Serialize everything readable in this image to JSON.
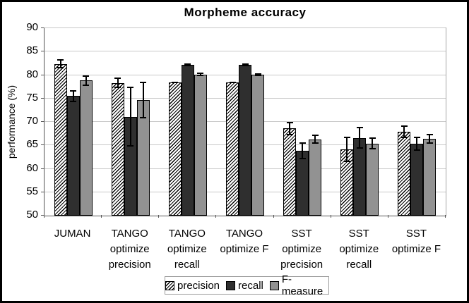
{
  "chart_data": {
    "type": "bar",
    "title": "Morpheme accuracy",
    "xlabel": "",
    "ylabel": "performance (%)",
    "ylim": [
      50,
      90
    ],
    "yticks": [
      90,
      85,
      80,
      75,
      70,
      65,
      60,
      55,
      50
    ],
    "grid": true,
    "legend_position": "bottom",
    "categories": [
      "JUMAN",
      "TANGO optimize precision",
      "TANGO optimize recall",
      "TANGO optimize F",
      "SST optimize precision",
      "SST optimize recall",
      "SST optimize F"
    ],
    "category_label_lines": [
      [
        "JUMAN"
      ],
      [
        "TANGO",
        "optimize",
        "precision"
      ],
      [
        "TANGO",
        "optimize",
        "recall"
      ],
      [
        "TANGO",
        "optimize F"
      ],
      [
        "SST",
        "optimize",
        "precision"
      ],
      [
        "SST",
        "optimize",
        "recall"
      ],
      [
        "SST",
        "optimize F"
      ]
    ],
    "series": [
      {
        "name": "precision",
        "fill": "hatch",
        "values": [
          82.4,
          78.3,
          78.4,
          78.4,
          68.6,
          64.2,
          67.9
        ],
        "errors": [
          1.0,
          1.1,
          0.2,
          0.2,
          1.4,
          2.7,
          1.4
        ]
      },
      {
        "name": "recall",
        "color": "#2f2f2f",
        "values": [
          75.5,
          71.1,
          82.2,
          82.2,
          63.9,
          66.6,
          65.3
        ],
        "errors": [
          1.3,
          6.4,
          0.3,
          0.3,
          1.8,
          2.3,
          1.5
        ]
      },
      {
        "name": "F-measure",
        "color": "#929292",
        "values": [
          78.8,
          74.6,
          80.1,
          80.1,
          66.3,
          65.4,
          66.4
        ],
        "errors": [
          1.1,
          3.9,
          0.4,
          0.3,
          1.0,
          1.3,
          1.1
        ]
      }
    ],
    "colors": {
      "hatch_foreground": "#000000",
      "hatch_background": "#ffffff",
      "recall_bar": "#2f2f2f",
      "f_measure_bar": "#929292",
      "gridline": "#c8c8c8",
      "axis": "#555555",
      "plot_border": "#a6a6a6",
      "legend_border": "#999999",
      "error_bar": "#000000"
    }
  }
}
